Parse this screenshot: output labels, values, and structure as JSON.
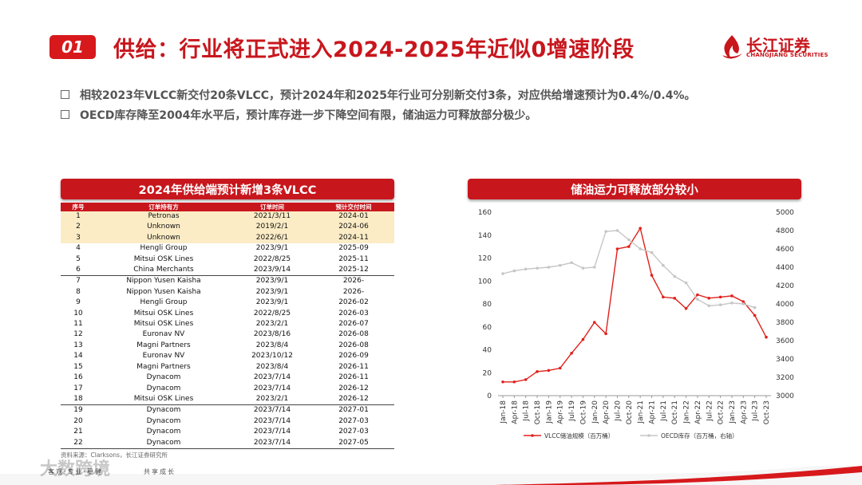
{
  "header": {
    "badge": "01",
    "title": "供给：行业将正式进入2024-2025年近似0增速阶段",
    "logo_cn": "长江证券",
    "logo_en": "CHANGJIANG SECURITIES",
    "accent": "#c8161d"
  },
  "bullets": [
    "相较2023年VLCC新交付20条VLCC，预计2024年和2025年行业可分别新交付3条，对应供给增速预计为0.4%/0.4%。",
    "OECD库存降至2004年水平后，预计库存进一步下降空间有限，储油运力可释放部分极少。"
  ],
  "table_panel": {
    "title": "2024年供给端预计新增3条VLCC",
    "columns": [
      "序号",
      "订单持有方",
      "订单时间",
      "预计交付时间"
    ],
    "rows": [
      [
        "1",
        "Petronas",
        "2021/3/11",
        "2024-01"
      ],
      [
        "2",
        "Unknown",
        "2019/2/1",
        "2024-06"
      ],
      [
        "3",
        "Unknown",
        "2022/6/1",
        "2024-11"
      ],
      [
        "4",
        "Hengli Group",
        "2023/9/1",
        "2025-09"
      ],
      [
        "5",
        "Mitsui OSK Lines",
        "2022/8/25",
        "2025-11"
      ],
      [
        "6",
        "China Merchants",
        "2023/9/14",
        "2025-12"
      ],
      [
        "7",
        "Nippon Yusen Kaisha",
        "2023/9/1",
        "2026-"
      ],
      [
        "8",
        "Nippon Yusen Kaisha",
        "2023/9/1",
        "2026-"
      ],
      [
        "9",
        "Hengli Group",
        "2023/9/1",
        "2026-02"
      ],
      [
        "10",
        "Mitsui OSK Lines",
        "2022/8/25",
        "2026-03"
      ],
      [
        "11",
        "Mitsui OSK Lines",
        "2023/2/1",
        "2026-07"
      ],
      [
        "12",
        "Euronav NV",
        "2023/8/16",
        "2026-08"
      ],
      [
        "13",
        "Magni Partners",
        "2023/8/4",
        "2026-08"
      ],
      [
        "14",
        "Euronav NV",
        "2023/10/12",
        "2026-09"
      ],
      [
        "15",
        "Magni Partners",
        "2023/8/4",
        "2026-11"
      ],
      [
        "16",
        "Dynacom",
        "2023/7/14",
        "2026-11"
      ],
      [
        "17",
        "Dynacom",
        "2023/7/14",
        "2026-12"
      ],
      [
        "18",
        "Mitsui OSK Lines",
        "2023/2/1",
        "2026-12"
      ],
      [
        "19",
        "Dynacom",
        "2023/7/14",
        "2027-01"
      ],
      [
        "20",
        "Dynacom",
        "2023/7/14",
        "2027-03"
      ],
      [
        "21",
        "Dynacom",
        "2023/7/14",
        "2027-03"
      ],
      [
        "22",
        "Dynacom",
        "2023/7/14",
        "2027-05"
      ]
    ],
    "source": "资料来源：Clarksons，长江证券研究所"
  },
  "chart_panel": {
    "title": "储油运力可释放部分较小"
  },
  "chart_data": {
    "type": "line",
    "x": [
      "Jan-18",
      "Apr-18",
      "Jul-18",
      "Oct-18",
      "Jan-19",
      "Apr-19",
      "Jul-19",
      "Oct-19",
      "Jan-20",
      "Apr-20",
      "Jul-20",
      "Oct-20",
      "Jan-21",
      "Apr-21",
      "Jul-21",
      "Oct-21",
      "Jan-22",
      "Apr-22",
      "Jul-22",
      "Oct-22",
      "Jan-23",
      "Apr-23",
      "Jul-23",
      "Oct-23"
    ],
    "series": [
      {
        "name": "VLCC储油规模（百万桶）",
        "axis": "left",
        "color": "#e0201b",
        "values": [
          12,
          12,
          14,
          21,
          22,
          24,
          37,
          49,
          64,
          54,
          128,
          130,
          146,
          105,
          86,
          85,
          76,
          88,
          85,
          86,
          87,
          82,
          70,
          51
        ]
      },
      {
        "name": "OECD库存（百万桶，右轴）",
        "axis": "right",
        "color": "#c6c6c6",
        "values": [
          4330,
          4360,
          4380,
          4390,
          4400,
          4420,
          4450,
          4390,
          4400,
          4790,
          4800,
          4700,
          4600,
          4560,
          4420,
          4300,
          4230,
          4050,
          3980,
          3990,
          4010,
          4000,
          3960,
          null
        ]
      }
    ],
    "y_left": {
      "min": 0,
      "max": 160,
      "ticks": [
        0,
        20,
        40,
        60,
        80,
        100,
        120,
        140,
        160
      ]
    },
    "y_right": {
      "min": 3000,
      "max": 5000,
      "ticks": [
        3000,
        3200,
        3400,
        3600,
        3800,
        4000,
        4200,
        4400,
        4600,
        4800,
        5000
      ]
    },
    "grid": false,
    "legend_position": "bottom"
  },
  "footer": {
    "left": "客观·专业·稳健",
    "right": "共享成长",
    "watermark": "大数跨境"
  }
}
